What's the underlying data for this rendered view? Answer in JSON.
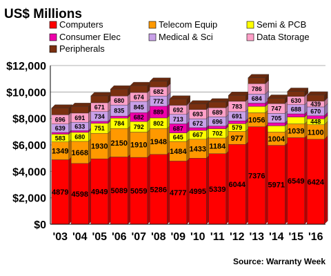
{
  "chart_data": {
    "type": "bar",
    "stacked": true,
    "title": "US$ Millions",
    "source": "Source: Warranty Week",
    "categories": [
      "'03",
      "'04",
      "'05",
      "'06",
      "'07",
      "'08",
      "'09",
      "'10",
      "'11",
      "'12",
      "'13",
      "'14",
      "'15",
      "'16"
    ],
    "ylim": [
      0,
      12000
    ],
    "yticks": [
      0,
      2000,
      4000,
      6000,
      8000,
      10000,
      12000
    ],
    "ytick_labels": [
      "$0",
      "$2,000",
      "$4,000",
      "$6,000",
      "$8,000",
      "$10,000",
      "$12,000"
    ],
    "grid": true,
    "legend_position": "top",
    "series": [
      {
        "name": "Computers",
        "color": "#ff0000",
        "values": [
          4879,
          4598,
          4949,
          5089,
          5059,
          5286,
          4777,
          4995,
          5339,
          6044,
          7376,
          5971,
          6549,
          6424
        ]
      },
      {
        "name": "Telecom Equip",
        "color": "#ff9900",
        "values": [
          1349,
          1668,
          1930,
          2150,
          1910,
          1948,
          1484,
          1433,
          1184,
          977,
          1056,
          1004,
          1039,
          1100
        ]
      },
      {
        "name": "Semi & PCB",
        "color": "#ffff00",
        "values": [
          583,
          680,
          751,
          784,
          792,
          802,
          645,
          667,
          702,
          579,
          475,
          467,
          520,
          448
        ]
      },
      {
        "name": "Consumer Elec",
        "color": "#ee00aa",
        "values": [
          130,
          135,
          150,
          160,
          682,
          889,
          687,
          210,
          200,
          220,
          250,
          230,
          240,
          230
        ]
      },
      {
        "name": "Medical & Sci",
        "color": "#c8a0e8",
        "values": [
          639,
          633,
          734,
          835,
          845,
          772,
          713,
          672,
          696,
          691,
          684,
          705,
          688,
          670
        ]
      },
      {
        "name": "Data Storage",
        "color": "#ffa0c8",
        "values": [
          696,
          691,
          671,
          680,
          674,
          682,
          692,
          693,
          689,
          783,
          786,
          747,
          630,
          439
        ]
      },
      {
        "name": "Peripherals",
        "color": "#7a3010",
        "values": [
          500,
          500,
          520,
          520,
          520,
          430,
          460,
          420,
          430,
          450,
          450,
          400,
          380,
          450
        ]
      }
    ],
    "value_labels": [
      [
        "4879",
        "4598",
        "4949",
        "5089",
        "5059",
        "5286",
        "4777",
        "4995",
        "5339",
        "6044",
        "7376",
        "5971",
        "6549",
        "6424"
      ],
      [
        "1349",
        "1668",
        "1930",
        "2150",
        "1910",
        "1948",
        "1484",
        "1433",
        "1184",
        "977",
        "1056",
        "1004",
        "1039",
        "1100"
      ],
      [
        "583",
        "680",
        "751",
        "784",
        "792",
        "802",
        "645",
        "667",
        "702",
        "579",
        "",
        "",
        "",
        "448"
      ],
      [
        "",
        "",
        "",
        "",
        "682",
        "889",
        "687",
        "",
        "",
        "",
        "",
        "",
        "",
        ""
      ],
      [
        "639",
        "633",
        "734",
        "835",
        "845",
        "772",
        "713",
        "672",
        "696",
        "691",
        "684",
        "705",
        "688",
        "670"
      ],
      [
        "696",
        "691",
        "671",
        "680",
        "674",
        "682",
        "692",
        "693",
        "689",
        "783",
        "786",
        "747",
        "630",
        "439"
      ],
      [
        "",
        "",
        "",
        "",
        "",
        "",
        "",
        "",
        "",
        "",
        "",
        "",
        "",
        ""
      ]
    ]
  }
}
